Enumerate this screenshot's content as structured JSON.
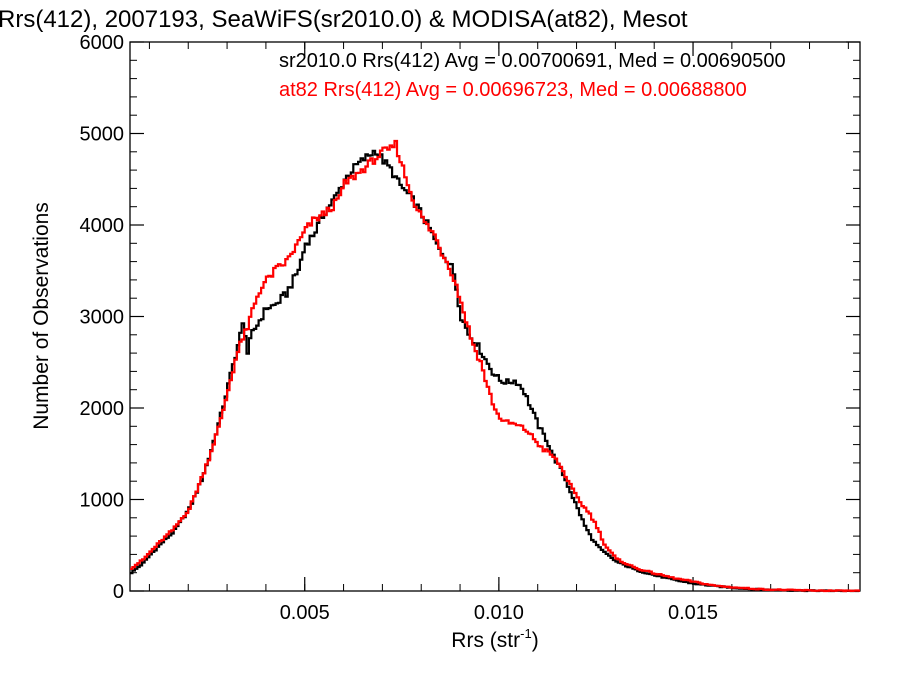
{
  "chart_data": {
    "type": "line",
    "title": "Rrs(412), 2007193, SeaWiFS(sr2010.0) & MODISA(at82), Mesot",
    "xlabel": "Rrs (str",
    "xlabel_sup": "-1",
    "xlabel_close": ")",
    "ylabel": "Number of Observations",
    "xlim": [
      0.0005,
      0.0193
    ],
    "ylim": [
      0,
      6000
    ],
    "x_ticks": [
      0.005,
      0.01,
      0.015
    ],
    "x_tick_labels": [
      "0.005",
      "0.010",
      "0.015"
    ],
    "y_ticks": [
      0,
      1000,
      2000,
      3000,
      4000,
      5000,
      6000
    ],
    "y_tick_labels": [
      "0",
      "1000",
      "2000",
      "3000",
      "4000",
      "5000",
      "6000"
    ],
    "grid": false,
    "style": "stepped histogram",
    "series": [
      {
        "name": "sr2010.0",
        "color": "#000000",
        "stats_label": "sr2010.0 Rrs(412) Avg = 0.00700691, Med = 0.00690500",
        "points": [
          [
            0.0005,
            200
          ],
          [
            0.0008,
            300
          ],
          [
            0.001,
            400
          ],
          [
            0.0013,
            530
          ],
          [
            0.0016,
            650
          ],
          [
            0.002,
            900
          ],
          [
            0.0023,
            1200
          ],
          [
            0.0025,
            1450
          ],
          [
            0.0028,
            1900
          ],
          [
            0.003,
            2250
          ],
          [
            0.0032,
            2600
          ],
          [
            0.0034,
            2950
          ],
          [
            0.0035,
            2600
          ],
          [
            0.0036,
            2800
          ],
          [
            0.0038,
            2950
          ],
          [
            0.004,
            3100
          ],
          [
            0.0042,
            3120
          ],
          [
            0.0045,
            3250
          ],
          [
            0.0048,
            3500
          ],
          [
            0.005,
            3800
          ],
          [
            0.0052,
            3900
          ],
          [
            0.0055,
            4150
          ],
          [
            0.0058,
            4330
          ],
          [
            0.006,
            4500
          ],
          [
            0.0063,
            4650
          ],
          [
            0.0065,
            4720
          ],
          [
            0.0068,
            4820
          ],
          [
            0.007,
            4700
          ],
          [
            0.0072,
            4600
          ],
          [
            0.0074,
            4450
          ],
          [
            0.0076,
            4350
          ],
          [
            0.0078,
            4250
          ],
          [
            0.008,
            4100
          ],
          [
            0.0082,
            3950
          ],
          [
            0.0084,
            3750
          ],
          [
            0.0086,
            3650
          ],
          [
            0.0088,
            3500
          ],
          [
            0.009,
            3000
          ],
          [
            0.0092,
            2800
          ],
          [
            0.0094,
            2700
          ],
          [
            0.0096,
            2550
          ],
          [
            0.0098,
            2400
          ],
          [
            0.01,
            2300
          ],
          [
            0.0102,
            2280
          ],
          [
            0.0104,
            2300
          ],
          [
            0.0106,
            2200
          ],
          [
            0.0108,
            2000
          ],
          [
            0.011,
            1800
          ],
          [
            0.0112,
            1650
          ],
          [
            0.0114,
            1450
          ],
          [
            0.0116,
            1300
          ],
          [
            0.0118,
            1100
          ],
          [
            0.012,
            900
          ],
          [
            0.0122,
            700
          ],
          [
            0.0124,
            550
          ],
          [
            0.0126,
            450
          ],
          [
            0.013,
            320
          ],
          [
            0.0135,
            230
          ],
          [
            0.014,
            170
          ],
          [
            0.0145,
            120
          ],
          [
            0.015,
            80
          ],
          [
            0.0155,
            55
          ],
          [
            0.016,
            35
          ],
          [
            0.0165,
            20
          ],
          [
            0.017,
            12
          ],
          [
            0.0175,
            7
          ],
          [
            0.018,
            4
          ],
          [
            0.0185,
            2
          ],
          [
            0.0193,
            1
          ]
        ]
      },
      {
        "name": "at82",
        "color": "#ff0000",
        "stats_label": "at82 Rrs(412) Avg = 0.00696723, Med = 0.00688800",
        "points": [
          [
            0.0005,
            250
          ],
          [
            0.0008,
            340
          ],
          [
            0.001,
            430
          ],
          [
            0.0013,
            560
          ],
          [
            0.0016,
            680
          ],
          [
            0.002,
            900
          ],
          [
            0.0023,
            1220
          ],
          [
            0.0025,
            1450
          ],
          [
            0.0028,
            1850
          ],
          [
            0.003,
            2200
          ],
          [
            0.0032,
            2550
          ],
          [
            0.0034,
            2800
          ],
          [
            0.0035,
            2850
          ],
          [
            0.0036,
            3050
          ],
          [
            0.0038,
            3280
          ],
          [
            0.004,
            3400
          ],
          [
            0.0042,
            3500
          ],
          [
            0.0045,
            3600
          ],
          [
            0.0048,
            3800
          ],
          [
            0.005,
            3950
          ],
          [
            0.0052,
            4050
          ],
          [
            0.0055,
            4130
          ],
          [
            0.0058,
            4250
          ],
          [
            0.006,
            4450
          ],
          [
            0.0063,
            4550
          ],
          [
            0.0065,
            4620
          ],
          [
            0.0068,
            4730
          ],
          [
            0.007,
            4800
          ],
          [
            0.0072,
            4830
          ],
          [
            0.0073,
            4900
          ],
          [
            0.0075,
            4620
          ],
          [
            0.0077,
            4350
          ],
          [
            0.0079,
            4150
          ],
          [
            0.0081,
            4000
          ],
          [
            0.0083,
            3900
          ],
          [
            0.0085,
            3700
          ],
          [
            0.0087,
            3550
          ],
          [
            0.0089,
            3300
          ],
          [
            0.0091,
            3000
          ],
          [
            0.0093,
            2700
          ],
          [
            0.0095,
            2500
          ],
          [
            0.0097,
            2200
          ],
          [
            0.0099,
            1950
          ],
          [
            0.0101,
            1850
          ],
          [
            0.0103,
            1830
          ],
          [
            0.0105,
            1800
          ],
          [
            0.0107,
            1750
          ],
          [
            0.0109,
            1650
          ],
          [
            0.0111,
            1550
          ],
          [
            0.0113,
            1500
          ],
          [
            0.0115,
            1400
          ],
          [
            0.0117,
            1250
          ],
          [
            0.0119,
            1080
          ],
          [
            0.0121,
            950
          ],
          [
            0.0123,
            850
          ],
          [
            0.0125,
            700
          ],
          [
            0.0127,
            500
          ],
          [
            0.013,
            350
          ],
          [
            0.0135,
            250
          ],
          [
            0.014,
            190
          ],
          [
            0.0145,
            140
          ],
          [
            0.015,
            100
          ],
          [
            0.0155,
            60
          ],
          [
            0.016,
            40
          ],
          [
            0.0165,
            25
          ],
          [
            0.017,
            15
          ],
          [
            0.0175,
            10
          ],
          [
            0.018,
            6
          ],
          [
            0.0185,
            3
          ],
          [
            0.0193,
            2
          ]
        ]
      }
    ]
  }
}
